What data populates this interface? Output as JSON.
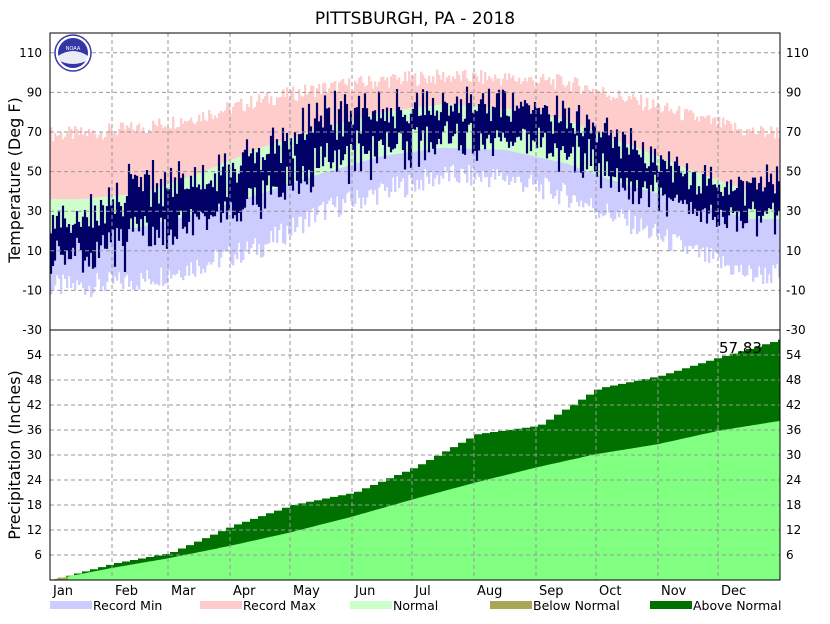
{
  "title": "PITTSBURGH, PA - 2018",
  "colors": {
    "record_min": "#ccccff",
    "record_max": "#ffcccc",
    "normal": "#ccffcc",
    "below_normal": "#a9a658",
    "above_normal": "#007000",
    "normal_precip": "#80ff80",
    "temperature_line": "#000066",
    "grid": "#999999"
  },
  "logo_text": "NOAA",
  "chart_data": [
    {
      "type": "area",
      "panel": "temperature",
      "ylabel": "Temperature (Deg F)",
      "ylim": [
        -30,
        120
      ],
      "yticks": [
        -30,
        -10,
        10,
        30,
        50,
        70,
        90,
        110
      ],
      "x_months": [
        "Jan",
        "Feb",
        "Mar",
        "Apr",
        "May",
        "Jun",
        "Jul",
        "Aug",
        "Sep",
        "Oct",
        "Nov",
        "Dec"
      ],
      "grid": true,
      "series": [
        {
          "name": "Record Min",
          "approx_monthly_values": [
            -8,
            -5,
            3,
            12,
            30,
            40,
            48,
            47,
            38,
            25,
            10,
            -2
          ]
        },
        {
          "name": "Record Max",
          "approx_monthly_values": [
            69,
            72,
            78,
            86,
            92,
            96,
            98,
            97,
            95,
            87,
            78,
            70
          ]
        },
        {
          "name": "Normal",
          "approx_monthly_low": [
            20,
            22,
            29,
            39,
            49,
            58,
            62,
            61,
            54,
            43,
            35,
            26
          ],
          "approx_monthly_high": [
            36,
            39,
            49,
            62,
            72,
            80,
            84,
            82,
            76,
            64,
            51,
            40
          ]
        },
        {
          "name": "",
          "description": "observed daily high/low",
          "approx_monthly_low": [
            2,
            12,
            22,
            30,
            48,
            56,
            62,
            60,
            55,
            42,
            28,
            22
          ],
          "approx_monthly_high": [
            30,
            48,
            48,
            60,
            82,
            85,
            88,
            86,
            82,
            70,
            48,
            46
          ]
        }
      ]
    },
    {
      "type": "area",
      "panel": "precipitation",
      "ylabel": "Precipitation (Inches)",
      "ylim": [
        0,
        60
      ],
      "yticks": [
        6,
        12,
        18,
        24,
        30,
        36,
        42,
        48,
        54
      ],
      "x_months": [
        "Jan",
        "Feb",
        "Mar",
        "Apr",
        "May",
        "Jun",
        "Jul",
        "Aug",
        "Sep",
        "Oct",
        "Nov",
        "Dec"
      ],
      "grid": true,
      "annotation": "57.83",
      "series": [
        {
          "name": "Normal",
          "cumulative_month_start": [
            0,
            2.9,
            5.2,
            8.2,
            11.4,
            15.2,
            19.3,
            23.3,
            27.0,
            30.2,
            32.6,
            35.8
          ],
          "year_end": 38.2
        },
        {
          "name": "Observed",
          "cumulative_month_start": [
            0,
            4.0,
            6.5,
            13.0,
            18.0,
            21.0,
            27.0,
            35.0,
            37.0,
            46.0,
            49.0,
            53.5
          ],
          "year_end": 57.83
        }
      ]
    }
  ],
  "legend": [
    {
      "label": "Record Min",
      "color": "#ccccff"
    },
    {
      "label": "Record Max",
      "color": "#ffcccc"
    },
    {
      "label": "Normal",
      "color": "#ccffcc"
    },
    {
      "label": "Below Normal",
      "color": "#a9a658"
    },
    {
      "label": "Above Normal",
      "color": "#007000"
    }
  ]
}
